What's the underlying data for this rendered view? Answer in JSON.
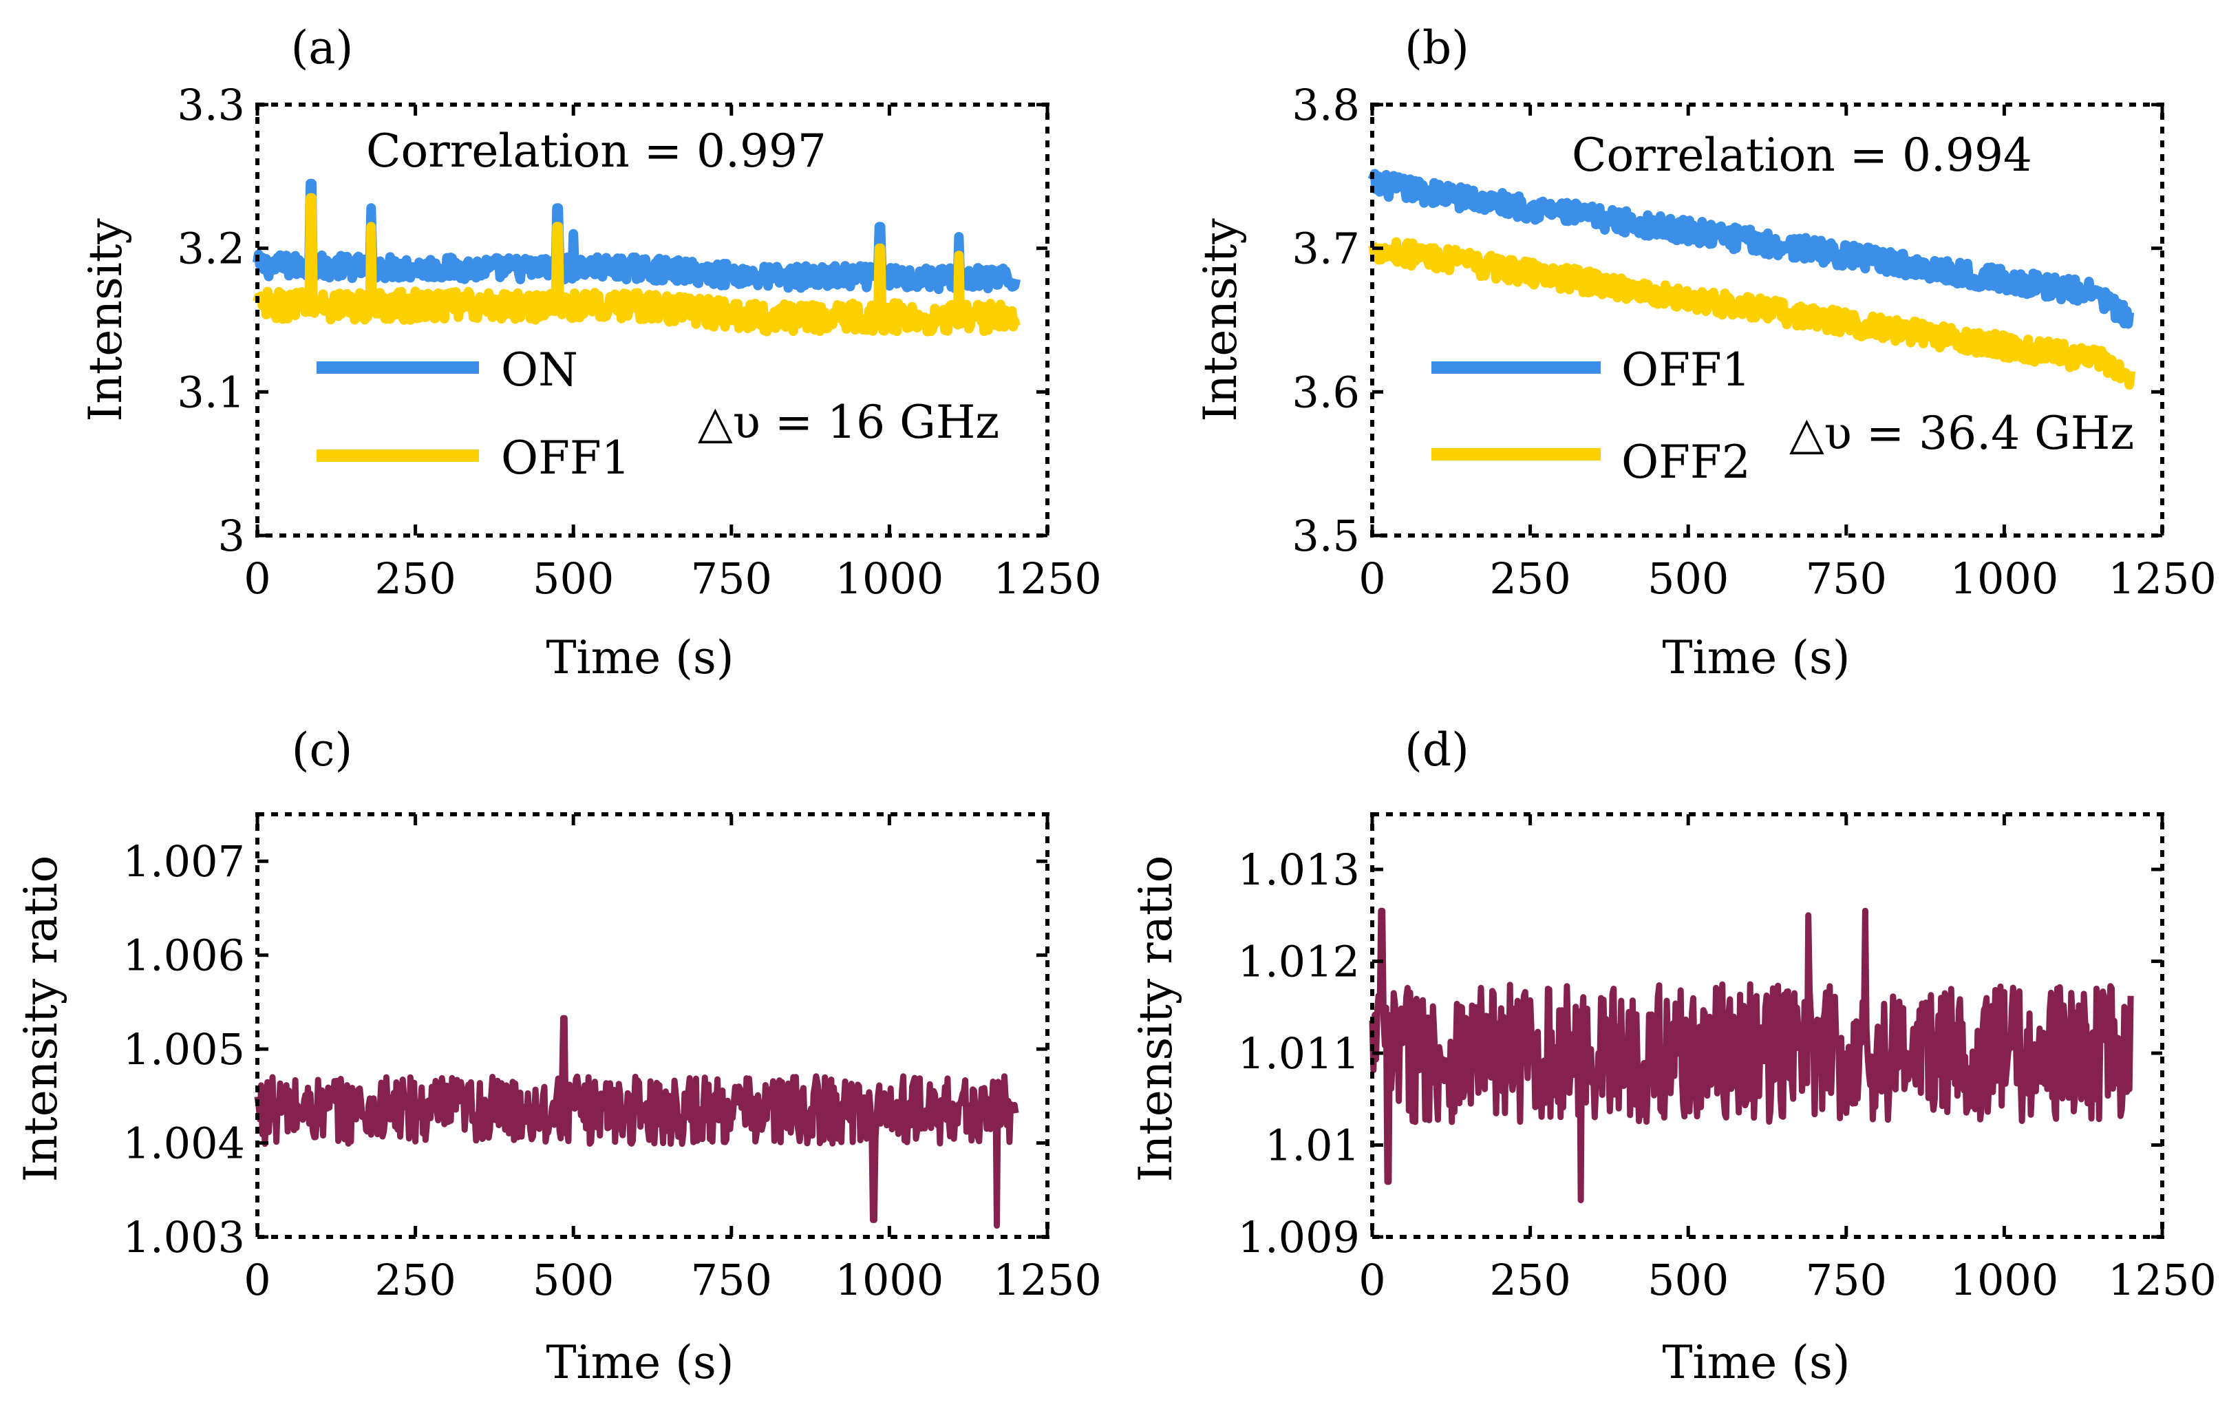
{
  "chart_data": [
    {
      "id": "a",
      "type": "line",
      "panel_label": "(a)",
      "xlabel": "Time (s)",
      "ylabel": "Intensity",
      "xlim": [
        0,
        1250
      ],
      "ylim": [
        3.0,
        3.3
      ],
      "xticks": [
        0,
        250,
        500,
        750,
        1000,
        1250
      ],
      "xtick_labels": [
        "0",
        "250",
        "500",
        "750",
        "1000",
        "1250"
      ],
      "yticks": [
        3.0,
        3.1,
        3.2,
        3.3
      ],
      "ytick_labels": [
        "3",
        "3.1",
        "3.2",
        "3.3"
      ],
      "annotations": [
        "Correlation = 0.997",
        "△υ = 16 GHz"
      ],
      "legend": [
        "ON",
        "OFF1"
      ],
      "series": [
        {
          "name": "ON",
          "color": "#3b8fe8",
          "x_start": 0,
          "x_end": 1200,
          "trend": [
            [
              0,
              3.188
            ],
            [
              300,
              3.186
            ],
            [
              600,
              3.186
            ],
            [
              800,
              3.18
            ],
            [
              1000,
              3.18
            ],
            [
              1200,
              3.178
            ]
          ],
          "noise": 0.008,
          "spikes": [
            [
              85,
              3.245
            ],
            [
              180,
              3.228
            ],
            [
              475,
              3.228
            ],
            [
              500,
              3.21
            ],
            [
              985,
              3.215
            ],
            [
              1110,
              3.208
            ]
          ]
        },
        {
          "name": "OFF1",
          "color": "#ffd000",
          "x_start": 0,
          "x_end": 1200,
          "trend": [
            [
              0,
              3.16
            ],
            [
              300,
              3.16
            ],
            [
              600,
              3.16
            ],
            [
              800,
              3.152
            ],
            [
              1000,
              3.152
            ],
            [
              1200,
              3.152
            ]
          ],
          "noise": 0.01,
          "spikes": [
            [
              85,
              3.235
            ],
            [
              180,
              3.215
            ],
            [
              475,
              3.215
            ],
            [
              985,
              3.2
            ],
            [
              1110,
              3.195
            ]
          ]
        }
      ]
    },
    {
      "id": "b",
      "type": "line",
      "panel_label": "(b)",
      "xlabel": "Time (s)",
      "ylabel": "Intensity",
      "xlim": [
        0,
        1250
      ],
      "ylim": [
        3.5,
        3.8
      ],
      "xticks": [
        0,
        250,
        500,
        750,
        1000,
        1250
      ],
      "xtick_labels": [
        "0",
        "250",
        "500",
        "750",
        "1000",
        "1250"
      ],
      "yticks": [
        3.5,
        3.6,
        3.7,
        3.8
      ],
      "ytick_labels": [
        "3.5",
        "3.6",
        "3.7",
        "3.8"
      ],
      "annotations": [
        "Correlation = 0.994",
        "△υ = 36.4 GHz"
      ],
      "legend": [
        "OFF1",
        "OFF2"
      ],
      "series": [
        {
          "name": "OFF1",
          "color": "#3b8fe8",
          "x_start": 0,
          "x_end": 1200,
          "trend": [
            [
              0,
              3.745
            ],
            [
              250,
              3.728
            ],
            [
              500,
              3.712
            ],
            [
              750,
              3.695
            ],
            [
              1000,
              3.678
            ],
            [
              1150,
              3.668
            ],
            [
              1200,
              3.648
            ]
          ],
          "noise": 0.008,
          "spikes": []
        },
        {
          "name": "OFF2",
          "color": "#ffd000",
          "x_start": 0,
          "x_end": 1200,
          "trend": [
            [
              0,
              3.7
            ],
            [
              250,
              3.683
            ],
            [
              500,
              3.665
            ],
            [
              750,
              3.648
            ],
            [
              1000,
              3.632
            ],
            [
              1150,
              3.622
            ],
            [
              1200,
              3.612
            ]
          ],
          "noise": 0.008,
          "spikes": []
        }
      ]
    },
    {
      "id": "c",
      "type": "line",
      "panel_label": "(c)",
      "xlabel": "Time (s)",
      "ylabel": "Intensity ratio",
      "xlim": [
        0,
        1250
      ],
      "ylim": [
        1.003,
        1.0075
      ],
      "xticks": [
        0,
        250,
        500,
        750,
        1000,
        1250
      ],
      "xtick_labels": [
        "0",
        "250",
        "500",
        "750",
        "1000",
        "1250"
      ],
      "yticks": [
        1.003,
        1.004,
        1.005,
        1.006,
        1.007
      ],
      "ytick_labels": [
        "1.003",
        "1.004",
        "1.005",
        "1.006",
        "1.007"
      ],
      "annotations": [],
      "legend": [],
      "series": [
        {
          "name": "ratio",
          "color": "#84214f",
          "x_start": 0,
          "x_end": 1200,
          "trend": [
            [
              0,
              1.00435
            ],
            [
              1200,
              1.00435
            ]
          ],
          "noise": 0.00036,
          "spikes": [
            [
              485,
              1.00533
            ],
            [
              975,
              1.00318
            ],
            [
              1170,
              1.00312
            ]
          ]
        }
      ]
    },
    {
      "id": "d",
      "type": "line",
      "panel_label": "(d)",
      "xlabel": "Time (s)",
      "ylabel": "Intensity ratio",
      "xlim": [
        0,
        1250
      ],
      "ylim": [
        1.009,
        1.0136
      ],
      "xticks": [
        0,
        250,
        500,
        750,
        1000,
        1250
      ],
      "xtick_labels": [
        "0",
        "250",
        "500",
        "750",
        "1000",
        "1250"
      ],
      "yticks": [
        1.009,
        1.01,
        1.011,
        1.012,
        1.013
      ],
      "ytick_labels": [
        "1.009",
        "1.01",
        "1.011",
        "1.012",
        "1.013"
      ],
      "annotations": [],
      "legend": [],
      "series": [
        {
          "name": "ratio",
          "color": "#84214f",
          "x_start": 0,
          "x_end": 1200,
          "trend": [
            [
              0,
              1.011
            ],
            [
              1200,
              1.011
            ]
          ],
          "noise": 0.00075,
          "spikes": [
            [
              15,
              1.01255
            ],
            [
              25,
              1.0096
            ],
            [
              690,
              1.0125
            ],
            [
              780,
              1.01255
            ],
            [
              330,
              1.0094
            ]
          ]
        }
      ]
    }
  ]
}
